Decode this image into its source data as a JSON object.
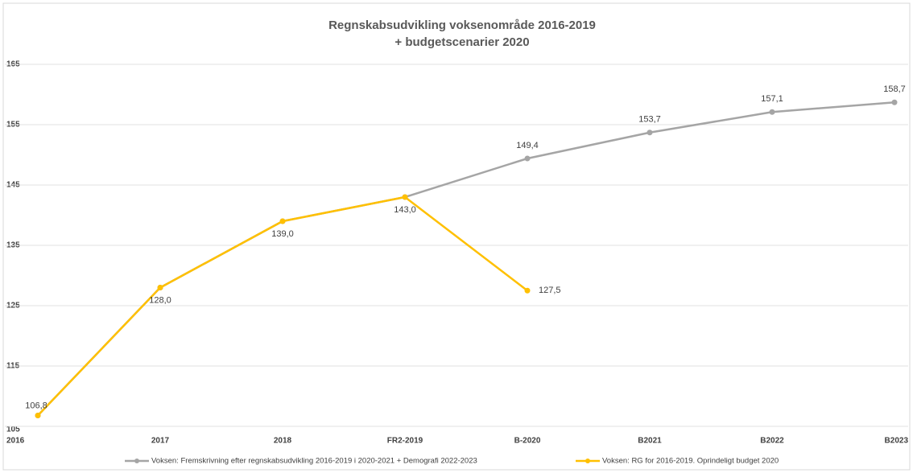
{
  "chart_data": {
    "type": "line",
    "title": "Regnskabsudvikling voksenområde 2016-2019",
    "subtitle": "+ budgetscenarier 2020",
    "categories": [
      "2016",
      "2017",
      "2018",
      "FR2-2019",
      "B-2020",
      "B2021",
      "B2022",
      "B2023"
    ],
    "series": [
      {
        "name": "Voksen: Fremskrivning efter regnskabsudvikling 2016-2019 i 2020-2021 + Demografi 2022-2023",
        "color": "#a5a5a5",
        "values": [
          106.8,
          128.0,
          139.0,
          143.0,
          149.4,
          153.7,
          157.1,
          158.7
        ],
        "value_labels": [
          null,
          null,
          null,
          null,
          "149,4",
          "153,7",
          "157,1",
          "158,7"
        ]
      },
      {
        "name": "Voksen: RG for 2016-2019. Oprindeligt budget 2020",
        "color": "#ffc000",
        "values": [
          106.8,
          128.0,
          139.0,
          143.0,
          127.5,
          null,
          null,
          null
        ],
        "value_labels": [
          "106,8",
          "128,0",
          "139,0",
          "143,0",
          "127,5",
          null,
          null,
          null
        ]
      }
    ],
    "ylim": [
      105,
      165
    ],
    "yticks": [
      105,
      115,
      125,
      135,
      145,
      155,
      165
    ],
    "grid": true,
    "legend": "bottom"
  }
}
